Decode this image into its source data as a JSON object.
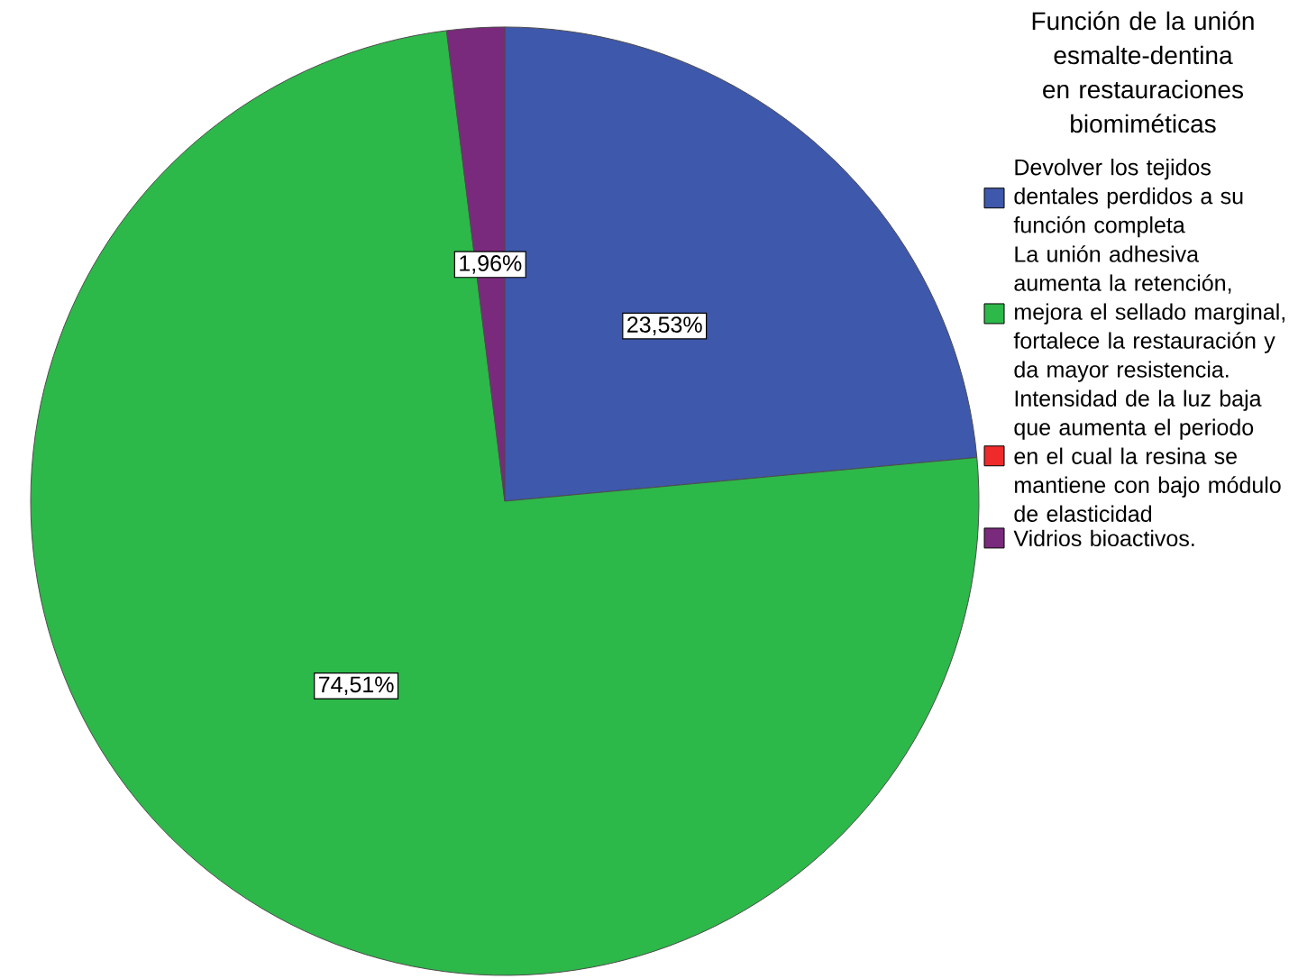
{
  "chart_data": {
    "type": "pie",
    "legend_title": "Función de la unión esmalte-dentina en restauraciones biomiméticas",
    "categories": [
      "Devolver los tejidos dentales perdidos a su función completa",
      "La unión adhesiva aumenta la retención, mejora el sellado marginal, fortalece la restauración y da mayor resistencia.",
      "Intensidad de la luz baja que aumenta el periodo en el cual la resina se mantiene con bajo módulo de elasticidad",
      "Vidrios bioactivos."
    ],
    "values": [
      23.53,
      74.51,
      0,
      1.96
    ],
    "colors": [
      "#3e58ac",
      "#2db84a",
      "#ee2a2a",
      "#7a2a7c"
    ],
    "value_labels": [
      "23,53%",
      "74,51%",
      null,
      "1,96%"
    ],
    "legend": "right"
  }
}
